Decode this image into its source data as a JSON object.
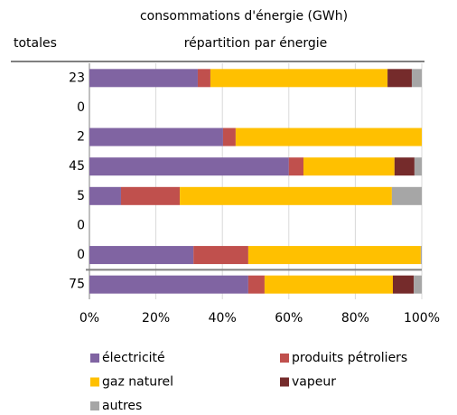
{
  "chart_data": {
    "type": "stacked-bar-horizontal",
    "title": "consommations d'énergie (GWh)",
    "category_axis_label": "totales",
    "subtitle": "répartition par énergie",
    "categories": [
      "23",
      "0",
      "2",
      "45",
      "5",
      "0",
      "0",
      "75"
    ],
    "series": [
      {
        "name": "électricité",
        "color": "#8064a2",
        "values": [
          32.6,
          0,
          40.2,
          60,
          9.5,
          0,
          31.3,
          47.8
        ]
      },
      {
        "name": "produits pétroliers",
        "color": "#c0504d",
        "values": [
          3.8,
          0,
          3.8,
          4.4,
          17.7,
          0,
          16.5,
          4.9
        ]
      },
      {
        "name": "gaz naturel",
        "color": "#ffc000",
        "values": [
          53.3,
          0,
          56,
          27.4,
          63.8,
          0,
          51.9,
          38.6
        ]
      },
      {
        "name": "vapeur",
        "color": "#752b2b",
        "values": [
          7.3,
          0,
          0,
          6,
          0,
          0,
          0,
          6.3
        ]
      },
      {
        "name": "autres",
        "color": "#a6a6a6",
        "values": [
          3,
          0,
          0,
          2.2,
          9,
          0,
          0.3,
          2.4
        ]
      }
    ],
    "xlim": [
      0,
      100
    ],
    "xticks": [
      {
        "value": 0,
        "label": "0%"
      },
      {
        "value": 20,
        "label": "20%"
      },
      {
        "value": 40,
        "label": "40%"
      },
      {
        "value": 60,
        "label": "60%"
      },
      {
        "value": 80,
        "label": "80%"
      },
      {
        "value": 100,
        "label": "100%"
      }
    ],
    "grid": true
  }
}
